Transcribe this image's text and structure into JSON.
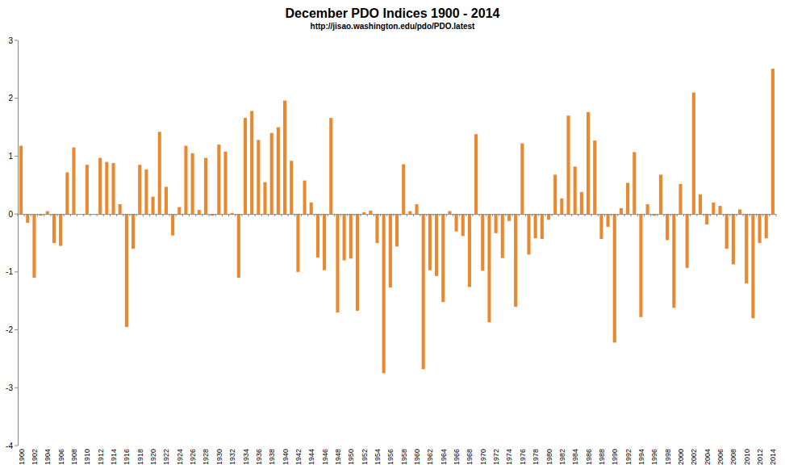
{
  "chart_data": {
    "type": "bar",
    "title": "December PDO Indices 1900 - 2014",
    "subtitle": "http://jisao.washington.edu/pdo/PDO.latest",
    "categories": [
      "1900",
      null,
      "1902",
      null,
      "1904",
      null,
      "1906",
      null,
      "1908",
      null,
      "1910",
      null,
      "1912",
      null,
      "1914",
      null,
      "1916",
      null,
      "1918",
      null,
      "1920",
      null,
      "1922",
      null,
      "1924",
      null,
      "1926",
      null,
      "1928",
      null,
      "1930",
      null,
      "1932",
      null,
      "1934",
      null,
      "1936",
      null,
      "1938",
      null,
      "1940",
      null,
      "1942",
      null,
      "1944",
      null,
      "1946",
      null,
      "1948",
      null,
      "1950",
      null,
      "1952",
      null,
      "1954",
      null,
      "1956",
      null,
      "1958",
      null,
      "1960",
      null,
      "1962",
      null,
      "1964",
      null,
      "1966",
      null,
      "1968",
      null,
      "1970",
      null,
      "1972",
      null,
      "1974",
      null,
      "1976",
      null,
      "1978",
      null,
      "1980",
      null,
      "1982",
      null,
      "1984",
      null,
      "1986",
      null,
      "1988",
      null,
      "1990",
      null,
      "1992",
      null,
      "1994",
      null,
      "1996",
      null,
      "1998",
      null,
      "2000",
      null,
      "2002",
      null,
      "2004",
      null,
      "2006",
      null,
      "2008",
      null,
      "2010",
      null,
      "2012",
      null,
      "2014"
    ],
    "values": [
      1.18,
      -0.15,
      -1.1,
      -0.03,
      0.05,
      -0.5,
      -0.55,
      0.72,
      1.15,
      0.0,
      0.85,
      0.0,
      0.97,
      0.9,
      0.88,
      0.17,
      -1.95,
      -0.6,
      0.85,
      0.77,
      0.3,
      1.42,
      0.47,
      -0.37,
      0.12,
      1.18,
      1.05,
      0.07,
      0.97,
      -0.03,
      1.2,
      1.08,
      0.02,
      -1.1,
      1.66,
      1.78,
      1.28,
      0.55,
      1.4,
      1.5,
      1.96,
      0.92,
      -1.0,
      0.58,
      0.2,
      -0.75,
      -0.97,
      1.66,
      -1.7,
      -0.8,
      -0.77,
      -1.67,
      0.03,
      0.06,
      -0.5,
      -2.75,
      -1.27,
      -0.56,
      0.86,
      0.05,
      0.17,
      -2.68,
      -0.97,
      -1.07,
      -1.52,
      0.05,
      -0.3,
      -0.38,
      -1.26,
      1.38,
      -0.98,
      -1.87,
      -0.33,
      -0.76,
      -0.12,
      -1.6,
      1.22,
      -0.7,
      -0.42,
      -0.43,
      -0.1,
      0.68,
      0.27,
      1.7,
      0.82,
      0.38,
      1.76,
      1.27,
      -0.43,
      -0.22,
      -2.22,
      0.1,
      0.54,
      1.07,
      -1.78,
      0.17,
      -0.03,
      0.68,
      -0.45,
      -1.62,
      0.52,
      -0.93,
      2.1,
      0.34,
      -0.18,
      0.2,
      0.14,
      -0.6,
      -0.87,
      0.08,
      -1.2,
      -1.8,
      -0.5,
      -0.42,
      2.51
    ],
    "color": "#e8892f",
    "ylim": [
      -4,
      3
    ],
    "yticks": [
      -4,
      -3,
      -2,
      -1,
      0,
      1,
      2,
      3
    ],
    "grid": false
  }
}
